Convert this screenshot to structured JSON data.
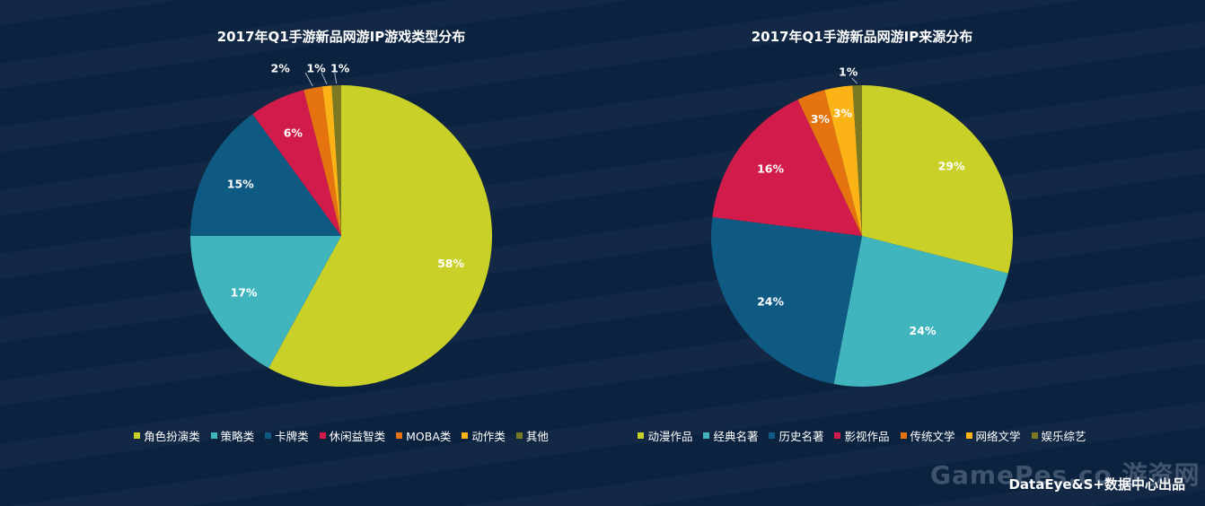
{
  "colors": {
    "background": "#0c2340",
    "palette": [
      "#c9d027",
      "#40b5bd",
      "#0f5a82",
      "#d11c4b",
      "#e5730f",
      "#fcb316",
      "#7b7a22"
    ]
  },
  "chart_data": [
    {
      "type": "pie",
      "title": "2017年Q1手游新品网游IP游戏类型分布",
      "categories": [
        "角色扮演类",
        "策略类",
        "卡牌类",
        "休闲益智类",
        "MOBA类",
        "动作类",
        "其他"
      ],
      "values": [
        58,
        17,
        15,
        6,
        2,
        1,
        1
      ],
      "labels": [
        "58%",
        "17%",
        "15%",
        "6%",
        "2%",
        "1%",
        "1%"
      ],
      "legend": "bottom"
    },
    {
      "type": "pie",
      "title": "2017年Q1手游新品网游IP来源分布",
      "categories": [
        "动漫作品",
        "经典名著",
        "历史名著",
        "影视作品",
        "传统文学",
        "网络文学",
        "娱乐综艺"
      ],
      "values": [
        29,
        24,
        24,
        16,
        3,
        3,
        1
      ],
      "labels": [
        "29%",
        "24%",
        "24%",
        "16%",
        "3%",
        "3%",
        "1%"
      ],
      "legend": "bottom"
    }
  ],
  "footer": {
    "watermark": "GamePes.co 游资网",
    "credit": "DataEye&S+数据中心出品"
  }
}
